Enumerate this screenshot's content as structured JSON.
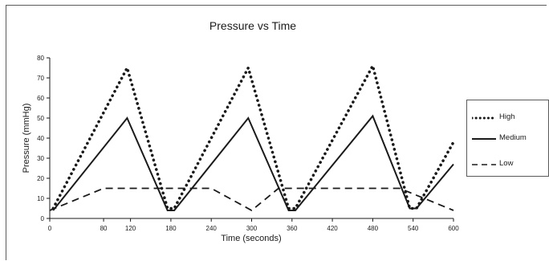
{
  "chart_data": {
    "type": "line",
    "title": "Pressure vs Time",
    "xlabel": "Time (seconds)",
    "ylabel": "Pressure (mmHg)",
    "xlim": [
      0,
      600
    ],
    "ylim": [
      0,
      80
    ],
    "xticks": [
      0,
      80,
      120,
      180,
      240,
      300,
      360,
      420,
      480,
      540,
      600
    ],
    "yticks": [
      0,
      10,
      20,
      30,
      40,
      50,
      60,
      70,
      80
    ],
    "grid": false,
    "legend_position": "right",
    "series": [
      {
        "name": "High",
        "style": "dotted",
        "color": "#1a1a1a",
        "x": [
          5,
          115,
          175,
          185,
          295,
          355,
          365,
          480,
          535,
          545,
          600
        ],
        "y": [
          5,
          75,
          5,
          5,
          75,
          5,
          5,
          76,
          5,
          5,
          38
        ]
      },
      {
        "name": "Medium",
        "style": "solid",
        "color": "#1a1a1a",
        "x": [
          5,
          115,
          175,
          185,
          295,
          355,
          365,
          480,
          535,
          545,
          600
        ],
        "y": [
          4,
          50,
          4,
          4,
          50,
          4,
          4,
          51,
          5,
          5,
          27
        ]
      },
      {
        "name": "Low",
        "style": "dashed",
        "color": "#1a1a1a",
        "x": [
          0,
          80,
          240,
          300,
          340,
          520,
          600
        ],
        "y": [
          4,
          15,
          15,
          4,
          15,
          15,
          4
        ]
      }
    ]
  }
}
